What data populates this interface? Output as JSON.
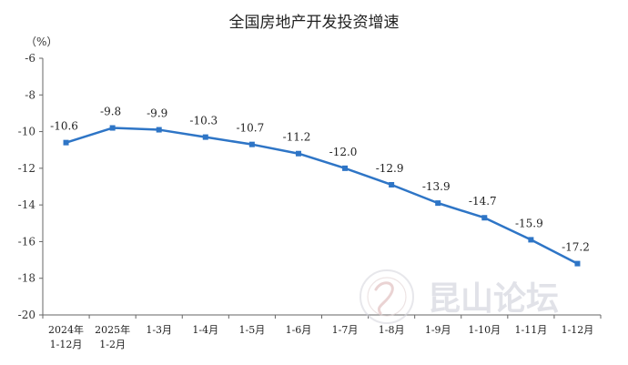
{
  "chart_data": {
    "type": "line",
    "title": "全国房地产开发投资增速",
    "unit_label": "（%）",
    "categories": [
      [
        "2024年",
        "1-12月"
      ],
      [
        "2025年",
        "1-2月"
      ],
      [
        "1-3月"
      ],
      [
        "1-4月"
      ],
      [
        "1-5月"
      ],
      [
        "1-6月"
      ],
      [
        "1-7月"
      ],
      [
        "1-8月"
      ],
      [
        "1-9月"
      ],
      [
        "1-10月"
      ],
      [
        "1-11月"
      ],
      [
        "1-12月"
      ]
    ],
    "values": [
      -10.6,
      -9.8,
      -9.9,
      -10.3,
      -10.7,
      -11.2,
      -12.0,
      -12.9,
      -13.9,
      -14.7,
      -15.9,
      -17.2
    ],
    "data_labels": [
      "-10.6",
      "-9.8",
      "-9.9",
      "-10.3",
      "-10.7",
      "-11.2",
      "-12.0",
      "-12.9",
      "-13.9",
      "-14.7",
      "-15.9",
      "-17.2"
    ],
    "ylim": [
      -20,
      -6
    ],
    "yticks": [
      -6,
      -8,
      -10,
      -12,
      -14,
      -16,
      -18,
      -20
    ],
    "grid": false,
    "series_color": "#2e75c6"
  },
  "watermark": {
    "text": "昆山论坛"
  }
}
